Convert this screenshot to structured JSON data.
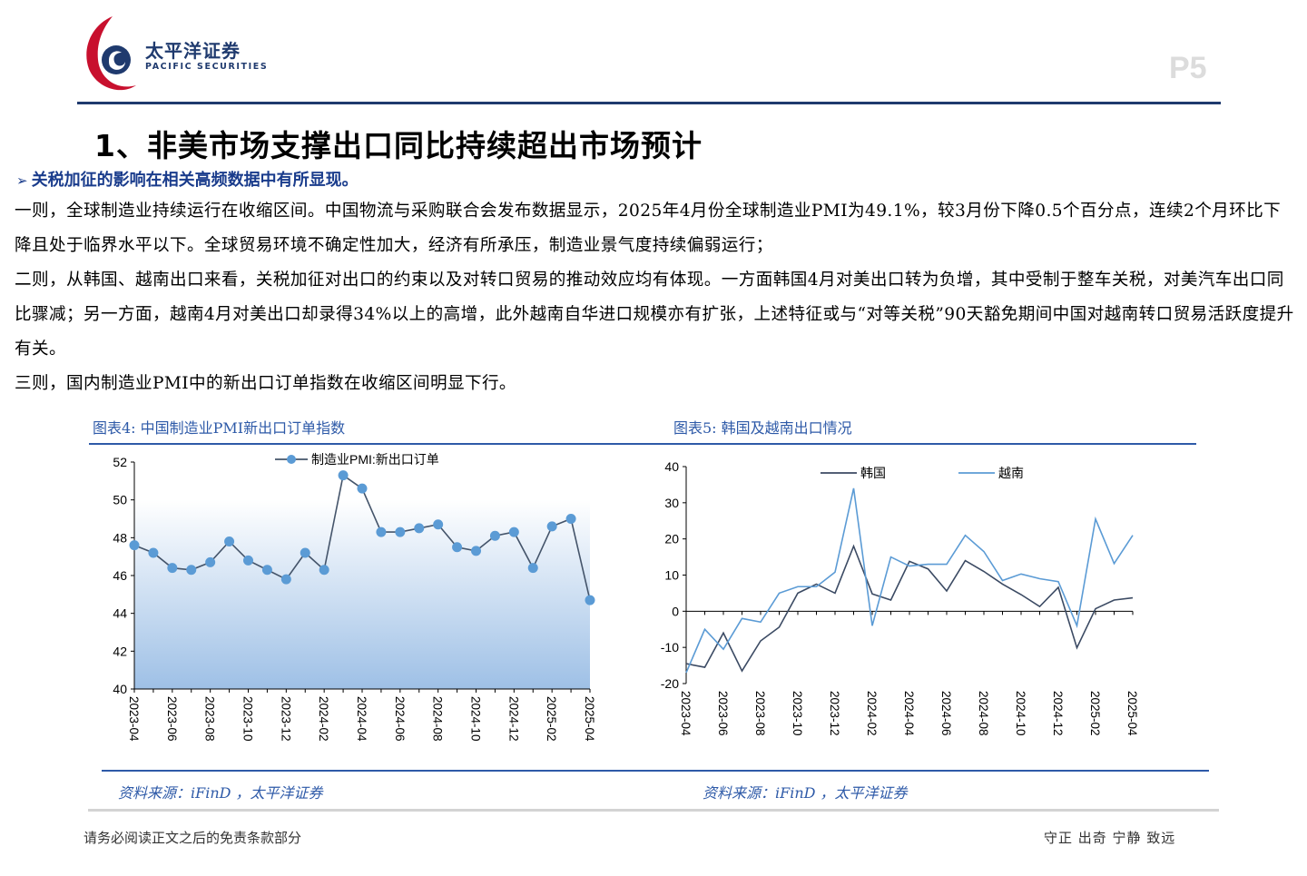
{
  "header": {
    "brand_cn": "太平洋证券",
    "brand_en": "PACIFIC SECURITIES",
    "page_number": "P5"
  },
  "title": "1、非美市场支撑出口同比持续超出市场预计",
  "bullet": "关税加征的影响在相关高频数据中有所显现。",
  "paragraphs": [
    "一则，全球制造业持续运行在收缩区间。中国物流与采购联合会发布数据显示，2025年4月份全球制造业PMI为49.1%，较3月份下降0.5个百分点，连续2个月环比下降且处于临界水平以下。全球贸易环境不确定性加大，经济有所承压，制造业景气度持续偏弱运行；",
    "二则，从韩国、越南出口来看，关税加征对出口的约束以及对转口贸易的推动效应均有体现。一方面韩国4月对美出口转为负增，其中受制于整车关税，对美汽车出口同比骤减；另一方面，越南4月对美出口却录得34%以上的高增，此外越南自华进口规模亦有扩张，上述特征或与“对等关税”90天豁免期间中国对越南转口贸易活跃度提升有关。",
    "三则，国内制造业PMI中的新出口订单指数在收缩区间明显下行。"
  ],
  "figures": {
    "fig4_caption": "图表4: 中国制造业PMI新出口订单指数",
    "fig5_caption": "图表5: 韩国及越南出口情况",
    "source1": "资料来源：iFinD ，太平洋证券",
    "source2": "资料来源：iFinD ，太平洋证券"
  },
  "footer": {
    "disclaimer": "请务必阅读正文之后的免责条款部分",
    "motto": "守正 出奇 宁静 致远"
  },
  "colors": {
    "brand_navy": "#1f3a6e",
    "brand_red": "#c8102e",
    "caption_blue": "#2e5aa8",
    "pmi_marker": "#5b9bd5",
    "korea_line": "#3b4a63",
    "vietnam_line": "#5b9bd5"
  },
  "chart_data": [
    {
      "type": "line",
      "legend": "制造业PMI:新出口订单",
      "x": [
        "2023-04",
        "2023-05",
        "2023-06",
        "2023-07",
        "2023-08",
        "2023-09",
        "2023-10",
        "2023-11",
        "2023-12",
        "2024-01",
        "2024-02",
        "2024-03",
        "2024-04",
        "2024-05",
        "2024-06",
        "2024-07",
        "2024-08",
        "2024-09",
        "2024-10",
        "2024-11",
        "2024-12",
        "2025-01",
        "2025-02",
        "2025-03",
        "2025-04"
      ],
      "x_tick_labels": [
        "2023-04",
        "2023-06",
        "2023-08",
        "2023-10",
        "2023-12",
        "2024-02",
        "2024-04",
        "2024-06",
        "2024-08",
        "2024-10",
        "2024-12",
        "2025-02",
        "2025-04"
      ],
      "series": [
        {
          "name": "制造业PMI:新出口订单",
          "values": [
            47.6,
            47.2,
            46.4,
            46.3,
            46.7,
            47.8,
            46.8,
            46.3,
            45.8,
            47.2,
            46.3,
            51.3,
            50.6,
            48.3,
            48.3,
            48.5,
            48.7,
            47.5,
            47.3,
            48.1,
            48.3,
            46.4,
            48.6,
            49.0,
            44.7
          ]
        }
      ],
      "ylim": [
        40,
        52
      ],
      "y_ticks": [
        40,
        42,
        44,
        46,
        48,
        50,
        52
      ],
      "area_fill_to": 50
    },
    {
      "type": "line",
      "x": [
        "2023-04",
        "2023-05",
        "2023-06",
        "2023-07",
        "2023-08",
        "2023-09",
        "2023-10",
        "2023-11",
        "2023-12",
        "2024-01",
        "2024-02",
        "2024-03",
        "2024-04",
        "2024-05",
        "2024-06",
        "2024-07",
        "2024-08",
        "2024-09",
        "2024-10",
        "2024-11",
        "2024-12",
        "2025-01",
        "2025-02",
        "2025-03",
        "2025-04"
      ],
      "x_tick_labels": [
        "2023-04",
        "2023-06",
        "2023-08",
        "2023-10",
        "2023-12",
        "2024-02",
        "2024-04",
        "2024-06",
        "2024-08",
        "2024-10",
        "2024-12",
        "2025-02",
        "2025-04"
      ],
      "series": [
        {
          "name": "韩国",
          "values": [
            -14.5,
            -15.5,
            -6,
            -16.5,
            -8.2,
            -4.4,
            5,
            7.5,
            5,
            18,
            4.8,
            3.1,
            13.8,
            11.7,
            5.6,
            14,
            11,
            7.5,
            4.6,
            1.3,
            6.6,
            -10.1,
            0.7,
            3.1,
            3.7
          ]
        },
        {
          "name": "越南",
          "values": [
            -17,
            -5,
            -10.5,
            -2,
            -3,
            5,
            6.8,
            6.8,
            10.8,
            34,
            -4,
            15,
            12.5,
            13,
            13,
            21,
            16.5,
            8.5,
            10.3,
            9,
            8.2,
            -4,
            25.5,
            13.2,
            21
          ]
        }
      ],
      "ylim": [
        -20,
        40
      ],
      "y_ticks": [
        -20,
        -10,
        0,
        10,
        20,
        30,
        40
      ]
    }
  ]
}
